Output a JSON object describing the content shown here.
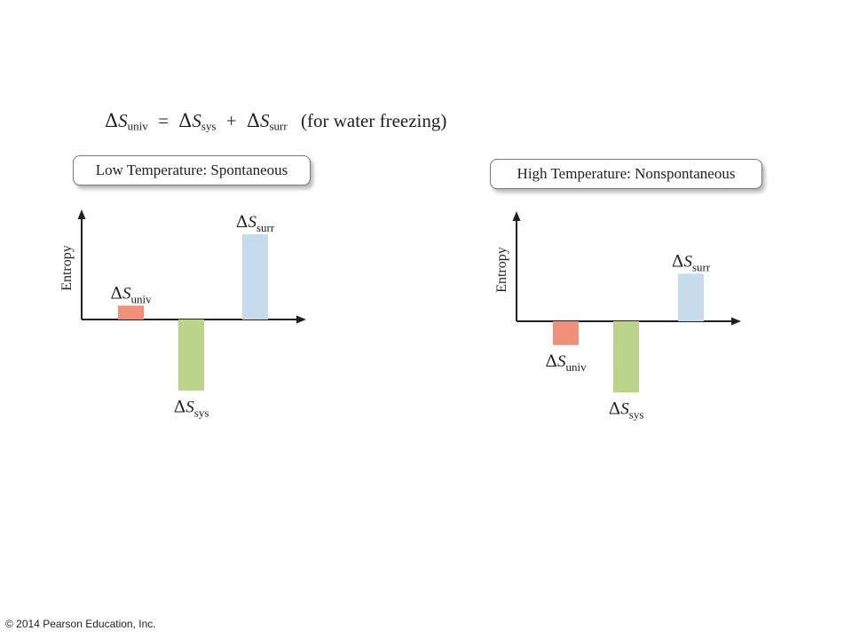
{
  "equation": {
    "delta": "Δ",
    "S": "S",
    "univ": "univ",
    "equals": "=",
    "sys": "sys",
    "plus": "+",
    "surr": "surr",
    "note": "(for water freezing)"
  },
  "colors": {
    "univ": "#f0907a",
    "sys": "#bcd48a",
    "surr": "#c6dced",
    "axis": "#231f20"
  },
  "chart_data": [
    {
      "type": "bar",
      "title": "Low Temperature: Spontaneous",
      "ylabel": "Entropy",
      "ylim": [
        -4,
        4.5
      ],
      "series": [
        {
          "label_prefix": "Δ",
          "label_var": "S",
          "label_sub": "univ",
          "value": 0.7,
          "color_key": "univ"
        },
        {
          "label_prefix": "Δ",
          "label_var": "S",
          "label_sub": "sys",
          "value": -3.6,
          "color_key": "sys"
        },
        {
          "label_prefix": "Δ",
          "label_var": "S",
          "label_sub": "surr",
          "value": 4.3,
          "color_key": "surr"
        }
      ]
    },
    {
      "type": "bar",
      "title": "High Temperature: Nonspontaneous",
      "ylabel": "Entropy",
      "ylim": [
        -4,
        4.5
      ],
      "series": [
        {
          "label_prefix": "Δ",
          "label_var": "S",
          "label_sub": "univ",
          "value": -1.2,
          "color_key": "univ"
        },
        {
          "label_prefix": "Δ",
          "label_var": "S",
          "label_sub": "sys",
          "value": -3.6,
          "color_key": "sys"
        },
        {
          "label_prefix": "Δ",
          "label_var": "S",
          "label_sub": "surr",
          "value": 2.4,
          "color_key": "surr"
        }
      ]
    }
  ],
  "footer": {
    "copyright": "© 2014 Pearson Education, Inc."
  }
}
